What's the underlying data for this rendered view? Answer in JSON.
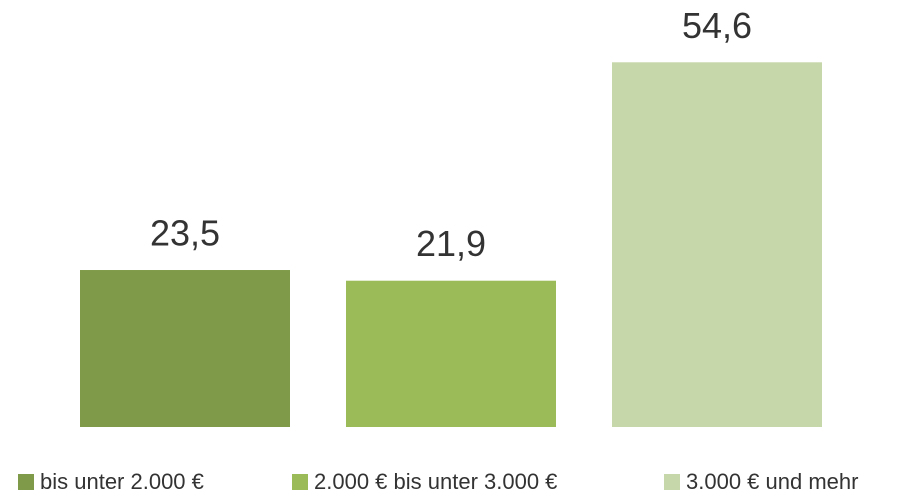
{
  "chart_data": {
    "type": "bar",
    "categories": [
      null
    ],
    "series": [
      {
        "name": "bis unter 2.000 €",
        "color": "#7f9a48",
        "values": [
          23.5
        ],
        "value_labels": [
          "23,5"
        ]
      },
      {
        "name": "2.000 € bis unter 3.000 €",
        "color": "#9bbb59",
        "values": [
          21.9
        ],
        "value_labels": [
          "21,9"
        ]
      },
      {
        "name": "3.000 € und mehr",
        "color": "#c6d7aa",
        "values": [
          54.6
        ],
        "value_labels": [
          "54,6"
        ]
      }
    ]
  }
}
